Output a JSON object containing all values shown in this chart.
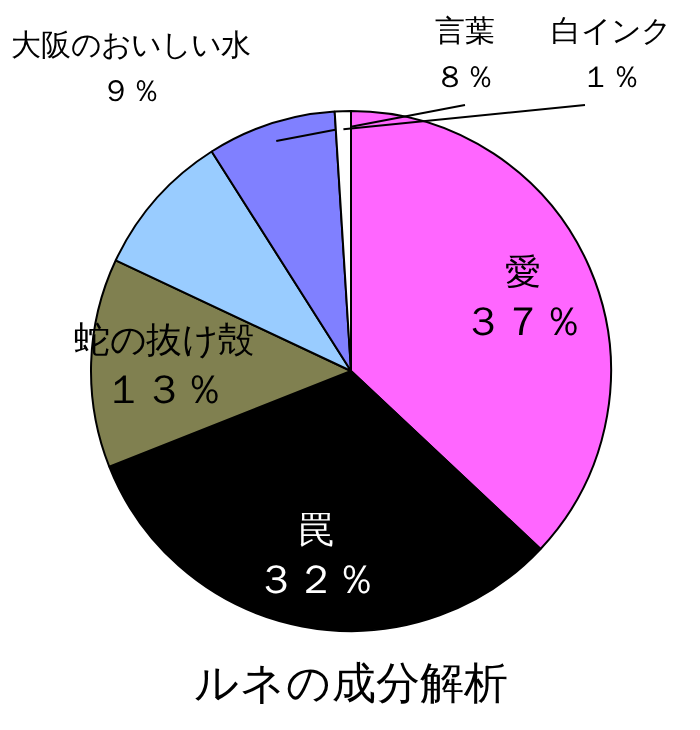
{
  "chart_data": {
    "type": "pie",
    "title": "ルネの成分解析",
    "categories": [
      "愛",
      "罠",
      "蛇の抜け殻",
      "大阪のおいしい水",
      "言葉",
      "白インク"
    ],
    "values": [
      37,
      32,
      13,
      9,
      8,
      1
    ],
    "colors": [
      "#ff66ff",
      "#000000",
      "#808050",
      "#99ccff",
      "#8080ff",
      "#ffffff"
    ],
    "value_labels": [
      "３７％",
      "３２％",
      "１３％",
      "９％",
      "８％",
      "１％"
    ]
  }
}
